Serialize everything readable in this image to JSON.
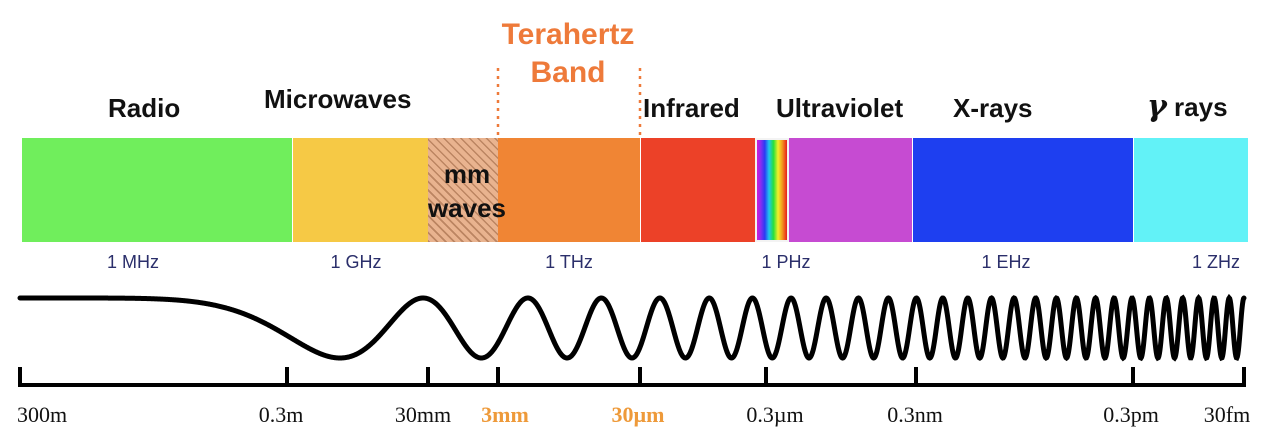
{
  "bands": {
    "radio": "Radio",
    "microwaves": "Microwaves",
    "terahertz_line1": "Terahertz",
    "terahertz_line2": "Band",
    "infrared": "Infrared",
    "ultraviolet": "Ultraviolet",
    "xrays": "X-rays",
    "gamma_symbol": "γ",
    "gamma_word": "rays",
    "mm_line1": "mm",
    "mm_line2": "waves"
  },
  "frequencies": [
    "1 MHz",
    "1 GHz",
    "1 THz",
    "1 PHz",
    "1 EHz",
    "1 ZHz"
  ],
  "wavelengths": [
    "300m",
    "0.3m",
    "30mm",
    "3mm",
    "30µm",
    "0.3µm",
    "0.3nm",
    "0.3pm",
    "30fm"
  ],
  "colors": {
    "radio": "#70ee5c",
    "microwaves": "#f6c945",
    "mm_waves": "#e9b38f",
    "terahertz": "#f08534",
    "infrared": "#ec4128",
    "ultraviolet": "#c64bd2",
    "xrays": "#1e3ff0",
    "gamma": "#62f2f7",
    "terahertz_accent": "#ee7a3a",
    "highlight_wavelength": "#ee9a3a"
  }
}
